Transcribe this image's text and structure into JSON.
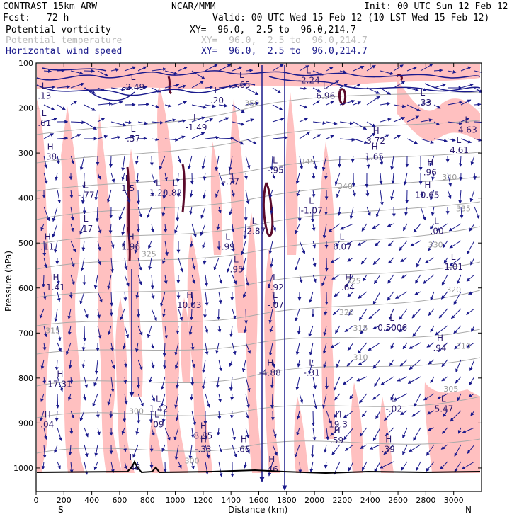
{
  "header": {
    "model": "CONTRAST 15km ARW",
    "org": "NCAR/MMM",
    "init": "Init: 00 UTC Sun 12 Feb 12",
    "fcst_label": "Fcst:",
    "fcst_value": "72 h",
    "valid": "Valid: 00 UTC Wed 15 Feb 12 (10 LST Wed 15 Feb 12)"
  },
  "fields": [
    {
      "name": "Potential vorticity",
      "xy": "XY=  96.0,  2.5 to  96.0,214.7",
      "color": "#000000"
    },
    {
      "name": "Potential temperature",
      "xy": "XY=  96.0,  2.5 to  96.0,214.7",
      "color": "#bbbbbb"
    },
    {
      "name": "Horizontal wind speed",
      "xy": "XY=  96.0,  2.5 to  96.0,214.7",
      "color": "#1a1a8c"
    }
  ],
  "colors": {
    "pv_fill": "#ffc0c0",
    "pv_line": "#5a0a2a",
    "theta": "#aaaaaa",
    "wind": "#1a1a8c",
    "axis": "#000000"
  },
  "chart_data": {
    "type": "cross-section",
    "xlabel": "Distance (km)",
    "ylabel": "Pressure (hPa)",
    "xlim": [
      0,
      3200
    ],
    "ylim_hpa": [
      1050,
      100
    ],
    "x_ticks": [
      "0",
      "200",
      "400",
      "600",
      "800",
      "1000",
      "1200",
      "1400",
      "1600",
      "1800",
      "2000",
      "2200",
      "2400",
      "2600",
      "2800",
      "3000"
    ],
    "y_ticks": [
      "100",
      "200",
      "300",
      "400",
      "500",
      "600",
      "700",
      "800",
      "900",
      "1000"
    ],
    "x_ends": [
      "S",
      "N"
    ],
    "theta_contours": [
      {
        "value": "340",
        "x": 2220,
        "p": 380
      },
      {
        "value": "340",
        "x": 2970,
        "p": 360
      },
      {
        "value": "335",
        "x": 3070,
        "p": 430
      },
      {
        "value": "330",
        "x": 2870,
        "p": 510
      },
      {
        "value": "325",
        "x": 810,
        "p": 530
      },
      {
        "value": "325",
        "x": 2280,
        "p": 590
      },
      {
        "value": "320",
        "x": 3000,
        "p": 610
      },
      {
        "value": "320",
        "x": 2230,
        "p": 660
      },
      {
        "value": "315",
        "x": 2330,
        "p": 695
      },
      {
        "value": "315",
        "x": 120,
        "p": 700
      },
      {
        "value": "310",
        "x": 2330,
        "p": 760
      },
      {
        "value": "310",
        "x": 3070,
        "p": 735
      },
      {
        "value": "305",
        "x": 2980,
        "p": 830
      },
      {
        "value": "350",
        "x": 1550,
        "p": 195
      },
      {
        "value": "345",
        "x": 1950,
        "p": 325
      },
      {
        "value": "300",
        "x": 720,
        "p": 880
      },
      {
        "value": "300",
        "x": 1120,
        "p": 990
      }
    ],
    "extrema": [
      {
        "type": "L",
        "value": "-2.49",
        "x": 700,
        "p": 155
      },
      {
        "type": "L",
        "value": "-.65",
        "x": 1480,
        "p": 150
      },
      {
        "type": "L",
        "value": ".20",
        "x": 1300,
        "p": 185
      },
      {
        "type": "L",
        "value": "-2.24",
        "x": 1960,
        "p": 140
      },
      {
        "type": "L",
        "value": "6.96",
        "x": 2080,
        "p": 175
      },
      {
        "type": "L",
        "value": "-.33",
        "x": 2780,
        "p": 190
      },
      {
        "type": "L",
        "value": "4.63",
        "x": 3100,
        "p": 250
      },
      {
        "type": "L",
        "value": "4.61",
        "x": 3040,
        "p": 295
      },
      {
        "type": "L",
        "value": ".13",
        "x": 60,
        "p": 175
      },
      {
        "type": "L",
        "value": ".61",
        "x": 60,
        "p": 235
      },
      {
        "type": "H",
        "value": ".38",
        "x": 100,
        "p": 310
      },
      {
        "type": "L",
        "value": "-1.49",
        "x": 1150,
        "p": 245
      },
      {
        "type": "L",
        "value": ".57",
        "x": 700,
        "p": 270
      },
      {
        "type": "H",
        "value": "3.72",
        "x": 2440,
        "p": 275
      },
      {
        "type": "H",
        "value": "1.65",
        "x": 2430,
        "p": 310
      },
      {
        "type": "L",
        "value": "-.95",
        "x": 1720,
        "p": 340
      },
      {
        "type": "H",
        "value": ".96",
        "x": 2830,
        "p": 345
      },
      {
        "type": "L",
        "value": "-.77",
        "x": 1400,
        "p": 365
      },
      {
        "type": "L",
        "value": "-.77",
        "x": 360,
        "p": 395
      },
      {
        "type": "L",
        "value": "1.5",
        "x": 660,
        "p": 380
      },
      {
        "type": "L",
        "value": "1.20",
        "x": 880,
        "p": 390
      },
      {
        "type": "L",
        "value": ".82",
        "x": 1000,
        "p": 390
      },
      {
        "type": "H",
        "value": "10.65",
        "x": 2810,
        "p": 395
      },
      {
        "type": "L",
        "value": "-1.07",
        "x": 1980,
        "p": 430
      },
      {
        "type": "L",
        "value": ".17",
        "x": 360,
        "p": 470
      },
      {
        "type": "L",
        "value": "-2.87",
        "x": 1570,
        "p": 475
      },
      {
        "type": "L",
        "value": ".00",
        "x": 2880,
        "p": 475
      },
      {
        "type": "H",
        "value": ".11",
        "x": 80,
        "p": 510
      },
      {
        "type": "H",
        "value": "1.96",
        "x": 680,
        "p": 510
      },
      {
        "type": "L",
        "value": ".99",
        "x": 1380,
        "p": 510
      },
      {
        "type": "L",
        "value": "6.07",
        "x": 2200,
        "p": 510
      },
      {
        "type": "L",
        "value": ".95",
        "x": 1440,
        "p": 560
      },
      {
        "type": "L",
        "value": "1.01",
        "x": 3000,
        "p": 555
      },
      {
        "type": "H",
        "value": "1.41",
        "x": 140,
        "p": 600
      },
      {
        "type": "L",
        "value": "-.92",
        "x": 1720,
        "p": 600
      },
      {
        "type": "H",
        "value": ".64",
        "x": 2240,
        "p": 600
      },
      {
        "type": "H",
        "value": "10.03",
        "x": 1100,
        "p": 640
      },
      {
        "type": "L",
        "value": "-.07",
        "x": 1720,
        "p": 640
      },
      {
        "type": "L",
        "value": "0.5006",
        "x": 2560,
        "p": 690
      },
      {
        "type": "H",
        "value": ".94",
        "x": 2900,
        "p": 735
      },
      {
        "type": "H",
        "value": "-4.88",
        "x": 1680,
        "p": 790
      },
      {
        "type": "L",
        "value": "-.31",
        "x": 1980,
        "p": 790
      },
      {
        "type": "H",
        "value": "17.31",
        "x": 170,
        "p": 815
      },
      {
        "type": "L",
        "value": "1.42",
        "x": 880,
        "p": 870
      },
      {
        "type": "L",
        "value": "-.02",
        "x": 2570,
        "p": 870
      },
      {
        "type": "L",
        "value": "5.47",
        "x": 2930,
        "p": 870
      },
      {
        "type": "H",
        "value": ".04",
        "x": 80,
        "p": 905
      },
      {
        "type": "L",
        "value": ".09",
        "x": 870,
        "p": 905
      },
      {
        "type": "H",
        "value": "19.3",
        "x": 2170,
        "p": 905
      },
      {
        "type": "H",
        "value": "8.85",
        "x": 1200,
        "p": 930
      },
      {
        "type": "H",
        "value": "-.33",
        "x": 1200,
        "p": 960
      },
      {
        "type": "H",
        "value": ".66",
        "x": 1490,
        "p": 960
      },
      {
        "type": "H",
        "value": ".59",
        "x": 2160,
        "p": 940
      },
      {
        "type": "H",
        "value": ".39",
        "x": 2530,
        "p": 960
      },
      {
        "type": "L",
        "value": "-.48",
        "x": 690,
        "p": 1000
      },
      {
        "type": "H",
        "value": ".46",
        "x": 1690,
        "p": 1005
      }
    ]
  }
}
